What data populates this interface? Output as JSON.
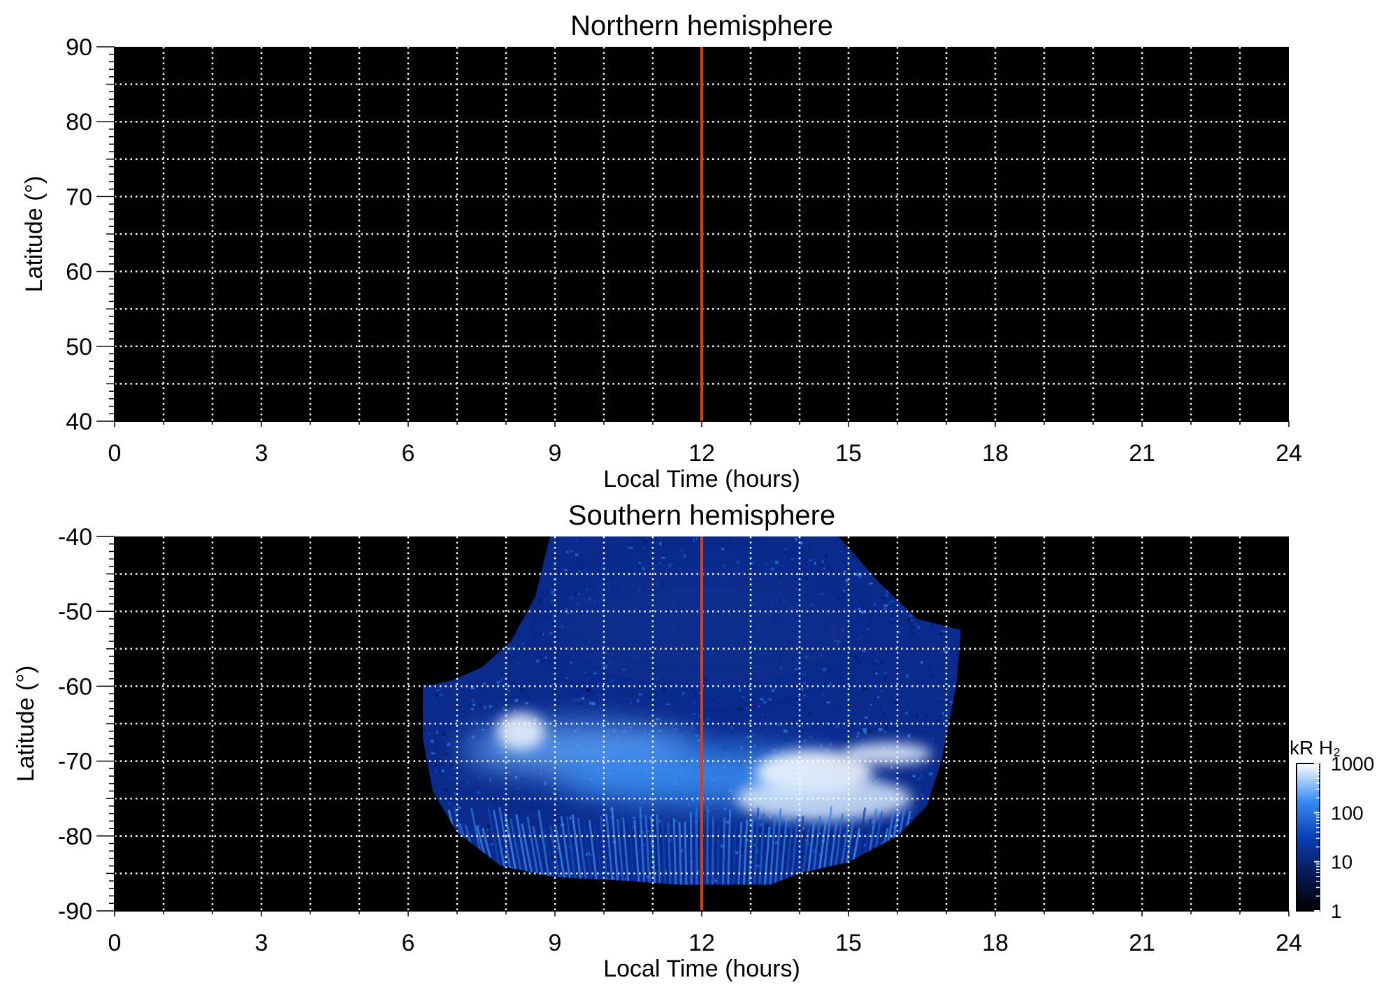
{
  "chart_data": [
    {
      "type": "heatmap",
      "title": "Northern hemisphere",
      "xlabel": "Local Time (hours)",
      "ylabel": "Latitude (°)",
      "xlim": [
        0,
        24
      ],
      "ylim": [
        40,
        90
      ],
      "x_ticks": [
        "0",
        "3",
        "6",
        "9",
        "12",
        "15",
        "18",
        "21",
        "24"
      ],
      "y_ticks": [
        "40",
        "50",
        "60",
        "70",
        "80",
        "90"
      ],
      "grid": "dotted white, every 1 hour and every 5°",
      "marker_line": {
        "x": 12,
        "color": "#d2401c"
      },
      "emission": "none"
    },
    {
      "type": "heatmap",
      "title": "Southern hemisphere",
      "xlabel": "Local Time (hours)",
      "ylabel": "Latitude (°)",
      "xlim": [
        0,
        24
      ],
      "ylim": [
        -90,
        -40
      ],
      "x_ticks": [
        "0",
        "3",
        "6",
        "9",
        "12",
        "15",
        "18",
        "21",
        "24"
      ],
      "y_ticks": [
        "-40",
        "-50",
        "-60",
        "-70",
        "-80",
        "-90"
      ],
      "grid": "dotted white, every 1 hour and every 5°",
      "marker_line": {
        "x": 12,
        "color": "#d2401c"
      },
      "coverage_boundary": [
        [
          6.3,
          -60.1
        ],
        [
          6.9,
          -59.2
        ],
        [
          7.5,
          -57.5
        ],
        [
          8.1,
          -54
        ],
        [
          8.6,
          -48
        ],
        [
          8.9,
          -40
        ],
        [
          14.8,
          -40
        ],
        [
          15.6,
          -46
        ],
        [
          16.4,
          -51
        ],
        [
          17.3,
          -52.5
        ],
        [
          17.2,
          -60
        ],
        [
          16.9,
          -70
        ],
        [
          16.6,
          -76
        ],
        [
          16.0,
          -80
        ],
        [
          15.0,
          -83.5
        ],
        [
          14.0,
          -85
        ],
        [
          13.4,
          -86.5
        ],
        [
          11.5,
          -86.5
        ],
        [
          10.5,
          -86
        ],
        [
          9,
          -85.5
        ],
        [
          7.9,
          -84
        ],
        [
          7.0,
          -79.5
        ],
        [
          6.5,
          -74
        ],
        [
          6.3,
          -67
        ]
      ],
      "emission_features": [
        {
          "lt": 9.5,
          "lat": -68.5,
          "spread_lt": 2.4,
          "spread_lat": 3.5,
          "kR": 250
        },
        {
          "lt": 8.3,
          "lat": -66,
          "spread_lt": 0.5,
          "spread_lat": 2.5,
          "kR": 900
        },
        {
          "lt": 12,
          "lat": -72,
          "spread_lt": 3,
          "spread_lat": 4,
          "kR": 180
        },
        {
          "lt": 14.3,
          "lat": -71.5,
          "spread_lt": 1.2,
          "spread_lat": 3,
          "kR": 1000
        },
        {
          "lt": 15.8,
          "lat": -69,
          "spread_lt": 0.9,
          "spread_lat": 1.5,
          "kR": 800
        },
        {
          "lt": 14.5,
          "lat": -75,
          "spread_lt": 1.8,
          "spread_lat": 3,
          "kR": 700
        },
        {
          "lt": 12,
          "lat": -52,
          "spread_lt": 3,
          "spread_lat": 8,
          "kR": 15
        }
      ],
      "colorbar": {
        "title": "kR H₂",
        "scale": "log",
        "range": [
          1,
          1000
        ],
        "tick_labels": [
          "1",
          "10",
          "100",
          "1000"
        ],
        "colors": [
          "#000000",
          "#061a55",
          "#0b3fb5",
          "#3a8ef5",
          "#ffffff"
        ]
      }
    }
  ]
}
